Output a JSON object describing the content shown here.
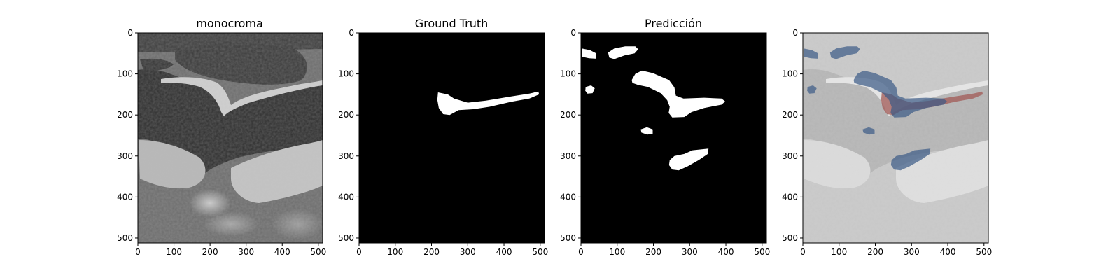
{
  "chart_data": [
    {
      "type": "image",
      "title": "monocroma",
      "xlim": [
        0,
        512
      ],
      "ylim": [
        512,
        0
      ],
      "xticks": [
        0,
        100,
        200,
        300,
        400,
        500
      ],
      "yticks": [
        0,
        100,
        200,
        300,
        400,
        500
      ],
      "content": "grayscale ultrasound"
    },
    {
      "type": "image",
      "title": "Ground Truth",
      "xlim": [
        0,
        512
      ],
      "ylim": [
        512,
        0
      ],
      "xticks": [
        0,
        100,
        200,
        300,
        400,
        500
      ],
      "yticks": [
        0,
        100,
        200,
        300,
        400,
        500
      ],
      "content": "binary mask",
      "regions": [
        {
          "points": [
            [
              218,
              145
            ],
            [
              245,
              150
            ],
            [
              262,
              160
            ],
            [
              300,
              170
            ],
            [
              350,
              165
            ],
            [
              420,
              155
            ],
            [
              470,
              148
            ],
            [
              495,
              143
            ],
            [
              497,
              150
            ],
            [
              470,
              160
            ],
            [
              420,
              168
            ],
            [
              360,
              180
            ],
            [
              315,
              186
            ],
            [
              275,
              188
            ],
            [
              250,
              200
            ],
            [
              232,
              198
            ],
            [
              220,
              183
            ],
            [
              216,
              163
            ]
          ]
        }
      ]
    },
    {
      "type": "image",
      "title": "Predicción",
      "xlim": [
        0,
        512
      ],
      "ylim": [
        512,
        0
      ],
      "xticks": [
        0,
        100,
        200,
        300,
        400,
        500
      ],
      "yticks": [
        0,
        100,
        200,
        300,
        400,
        500
      ],
      "content": "binary mask",
      "regions": [
        {
          "points": [
            [
              2,
              38
            ],
            [
              25,
              42
            ],
            [
              42,
              50
            ],
            [
              42,
              63
            ],
            [
              22,
              62
            ],
            [
              2,
              58
            ]
          ]
        },
        {
          "points": [
            [
              75,
              48
            ],
            [
              92,
              38
            ],
            [
              122,
              33
            ],
            [
              150,
              33
            ],
            [
              158,
              40
            ],
            [
              148,
              50
            ],
            [
              120,
              55
            ],
            [
              92,
              64
            ],
            [
              78,
              60
            ]
          ]
        },
        {
          "points": [
            [
              13,
              132
            ],
            [
              28,
              128
            ],
            [
              38,
              135
            ],
            [
              32,
              147
            ],
            [
              18,
              148
            ],
            [
              12,
              141
            ]
          ]
        },
        {
          "points": [
            [
              140,
              115
            ],
            [
              150,
              100
            ],
            [
              168,
              92
            ],
            [
              198,
              98
            ],
            [
              222,
              107
            ],
            [
              243,
              115
            ],
            [
              258,
              133
            ],
            [
              262,
              153
            ],
            [
              283,
              160
            ],
            [
              340,
              158
            ],
            [
              388,
              160
            ],
            [
              398,
              167
            ],
            [
              388,
              175
            ],
            [
              340,
              183
            ],
            [
              305,
              193
            ],
            [
              285,
              205
            ],
            [
              252,
              206
            ],
            [
              242,
              195
            ],
            [
              245,
              180
            ],
            [
              238,
              164
            ],
            [
              220,
              147
            ],
            [
              185,
              132
            ],
            [
              158,
              127
            ],
            [
              142,
              122
            ]
          ]
        },
        {
          "points": [
            [
              165,
              235
            ],
            [
              182,
              230
            ],
            [
              198,
              235
            ],
            [
              198,
              246
            ],
            [
              183,
              248
            ],
            [
              167,
              243
            ]
          ]
        },
        {
          "points": [
            [
              245,
              310
            ],
            [
              258,
              300
            ],
            [
              285,
              295
            ],
            [
              308,
              286
            ],
            [
              352,
              282
            ],
            [
              350,
              295
            ],
            [
              325,
              310
            ],
            [
              295,
              325
            ],
            [
              270,
              335
            ],
            [
              252,
              333
            ],
            [
              243,
              322
            ]
          ]
        }
      ]
    },
    {
      "type": "image",
      "title": "",
      "xlim": [
        0,
        512
      ],
      "ylim": [
        512,
        0
      ],
      "xticks": [
        0,
        100,
        200,
        300,
        400,
        500
      ],
      "yticks": [
        0,
        100,
        200,
        300,
        400,
        500
      ],
      "content": "overlay: ground truth (red) + prediction (blue) over faded ultrasound"
    }
  ],
  "colors": {
    "mask_fg": "#ffffff",
    "mask_bg": "#000000",
    "overlay_gt": "#a15a56",
    "overlay_pred": "#3a5a86",
    "overlay_overlap": "#4a2232"
  }
}
